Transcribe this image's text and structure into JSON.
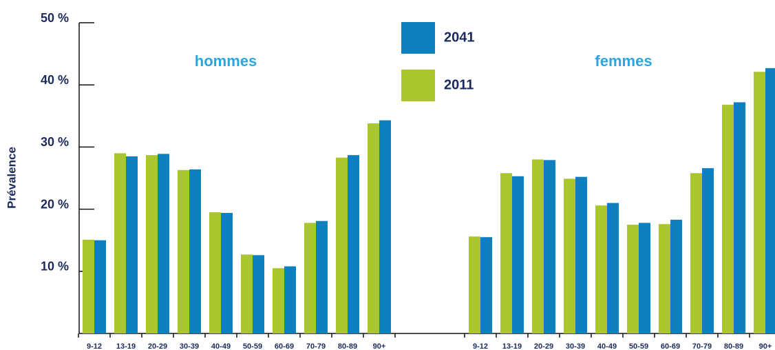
{
  "chart_data": {
    "type": "bar",
    "y_label": "Prévalence",
    "ylim": [
      0,
      50
    ],
    "yticks": [
      {
        "value": 10,
        "label": "10 %"
      },
      {
        "value": 20,
        "label": "20 %"
      },
      {
        "value": 30,
        "label": "30 %"
      },
      {
        "value": 40,
        "label": "40 %"
      },
      {
        "value": 50,
        "label": "50 %"
      }
    ],
    "series": [
      {
        "name": "2041",
        "color": "#0e7fc0"
      },
      {
        "name": "2011",
        "color": "#a9c62c"
      }
    ],
    "groups": [
      {
        "name": "hommes",
        "categories": [
          "9-12",
          "13-19",
          "20-29",
          "30-39",
          "40-49",
          "50-59",
          "60-69",
          "70-79",
          "80-89",
          "90+"
        ],
        "series": [
          {
            "values": [
              15.0,
              28.5,
              28.9,
              26.4,
              19.4,
              12.6,
              10.8,
              18.1,
              28.7,
              34.3
            ]
          },
          {
            "values": [
              15.1,
              29.0,
              28.7,
              26.3,
              19.5,
              12.7,
              10.5,
              17.8,
              28.3,
              33.8
            ]
          }
        ]
      },
      {
        "name": "femmes",
        "categories": [
          "9-12",
          "13-19",
          "20-29",
          "30-39",
          "40-49",
          "50-59",
          "60-69",
          "70-79",
          "80-89",
          "90+"
        ],
        "series": [
          {
            "values": [
              15.5,
              25.3,
              27.9,
              25.2,
              21.0,
              17.8,
              18.3,
              26.6,
              37.2,
              42.7
            ]
          },
          {
            "values": [
              15.6,
              25.8,
              28.0,
              24.9,
              20.6,
              17.5,
              17.6,
              25.8,
              36.8,
              42.1
            ]
          }
        ]
      }
    ]
  }
}
